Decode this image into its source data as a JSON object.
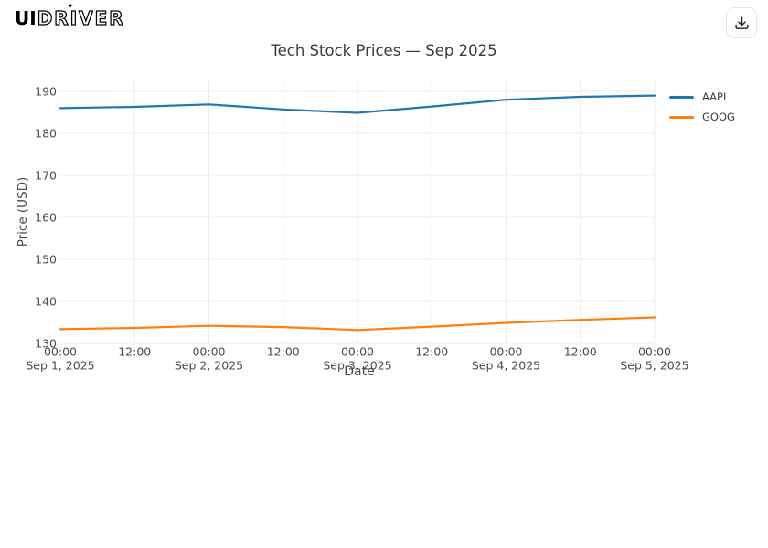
{
  "brand": {
    "part_bold": "UI",
    "part_outline": "DRIVER",
    "sparkle_icon": "✦"
  },
  "toolbar": {
    "download_icon_name": "download-tray-arrow"
  },
  "chart_data": {
    "type": "line",
    "title": "Tech Stock Prices — Sep 2025",
    "xlabel": "Date",
    "ylabel": "Price (USD)",
    "grid": true,
    "legend_position": "outside-right-top",
    "x_hours": [
      0,
      12,
      24,
      36,
      48,
      60,
      72,
      84,
      96
    ],
    "x_tick_labels": [
      {
        "time": "00:00",
        "date": "Sep 1, 2025"
      },
      {
        "time": "12:00",
        "date": ""
      },
      {
        "time": "00:00",
        "date": "Sep 2, 2025"
      },
      {
        "time": "12:00",
        "date": ""
      },
      {
        "time": "00:00",
        "date": "Sep 3, 2025"
      },
      {
        "time": "12:00",
        "date": ""
      },
      {
        "time": "00:00",
        "date": "Sep 4, 2025"
      },
      {
        "time": "12:00",
        "date": ""
      },
      {
        "time": "00:00",
        "date": "Sep 5, 2025"
      }
    ],
    "y_ticks": [
      130,
      140,
      150,
      160,
      170,
      180,
      190
    ],
    "ylim": [
      127.5,
      192.8
    ],
    "xlim": [
      "Sep 1, 2025 00:00",
      "Sep 5, 2025 00:00"
    ],
    "colors": {
      "gridline": "#ebebeb",
      "tick_text": "#4b4b4b",
      "title_text": "#3a3a3a"
    },
    "series": [
      {
        "name": "AAPL",
        "color": "#1f77b4",
        "values": [
          186.0,
          186.3,
          186.9,
          185.7,
          184.9,
          186.4,
          188.0,
          188.7,
          189.0
        ]
      },
      {
        "name": "GOOG",
        "color": "#ff7f0e",
        "values": [
          133.4,
          133.7,
          134.2,
          133.9,
          133.2,
          134.0,
          134.9,
          135.6,
          136.2
        ]
      }
    ]
  }
}
